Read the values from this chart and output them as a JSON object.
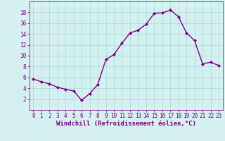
{
  "x": [
    0,
    1,
    2,
    3,
    4,
    5,
    6,
    7,
    8,
    9,
    10,
    11,
    12,
    13,
    14,
    15,
    16,
    17,
    18,
    19,
    20,
    21,
    22,
    23
  ],
  "y": [
    5.7,
    5.2,
    4.8,
    4.2,
    3.8,
    3.5,
    1.8,
    3.0,
    4.7,
    9.3,
    10.2,
    12.3,
    14.2,
    14.7,
    15.8,
    17.8,
    17.9,
    18.4,
    17.2,
    14.2,
    12.8,
    8.5,
    8.8,
    8.2
  ],
  "line_color": "#800080",
  "marker": "D",
  "marker_size": 2.0,
  "xlabel": "Windchill (Refroidissement éolien,°C)",
  "xlabel_fontsize": 6.5,
  "bg_color": "#d4f0f0",
  "grid_color": "#b0d8d8",
  "ylim": [
    0,
    20
  ],
  "xlim": [
    -0.5,
    23.5
  ],
  "yticks": [
    2,
    4,
    6,
    8,
    10,
    12,
    14,
    16,
    18
  ],
  "xticks": [
    0,
    1,
    2,
    3,
    4,
    5,
    6,
    7,
    8,
    9,
    10,
    11,
    12,
    13,
    14,
    15,
    16,
    17,
    18,
    19,
    20,
    21,
    22,
    23
  ],
  "tick_color": "#800080",
  "tick_fontsize": 5.5,
  "line_width": 1.0
}
